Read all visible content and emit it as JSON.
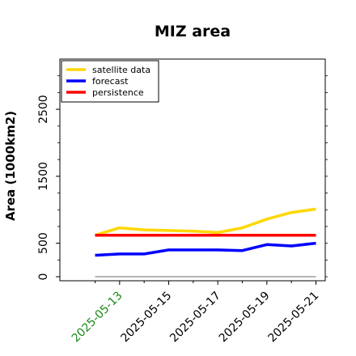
{
  "chart_data": {
    "type": "line",
    "title": "MIZ area",
    "xlabel": "",
    "ylabel": "Area (1000km2)",
    "x": [
      "2025-05-12",
      "2025-05-13",
      "2025-05-14",
      "2025-05-15",
      "2025-05-16",
      "2025-05-17",
      "2025-05-18",
      "2025-05-19",
      "2025-05-20",
      "2025-05-21"
    ],
    "xticks": [
      "2025-05-13",
      "2025-05-15",
      "2025-05-17",
      "2025-05-19",
      "2025-05-21"
    ],
    "xtick_colors": [
      "#1a8a1a",
      "#000000",
      "#000000",
      "#000000",
      "#000000"
    ],
    "yticks": [
      0,
      500,
      1500,
      2500
    ],
    "ylim": [
      -60,
      3250
    ],
    "grid": false,
    "legend_position": "top-left",
    "series": [
      {
        "name": "satellite data",
        "color": "#FFD700",
        "values": [
          620,
          730,
          700,
          690,
          680,
          660,
          730,
          860,
          960,
          1010
        ]
      },
      {
        "name": "forecast",
        "color": "#0000FF",
        "values": [
          320,
          340,
          340,
          400,
          400,
          400,
          390,
          480,
          460,
          500
        ]
      },
      {
        "name": "persistence",
        "color": "#FF0000",
        "values": [
          620,
          620,
          620,
          620,
          620,
          620,
          620,
          620,
          620,
          620
        ]
      }
    ],
    "reference_line": {
      "y": 0,
      "color": "#888888"
    }
  }
}
